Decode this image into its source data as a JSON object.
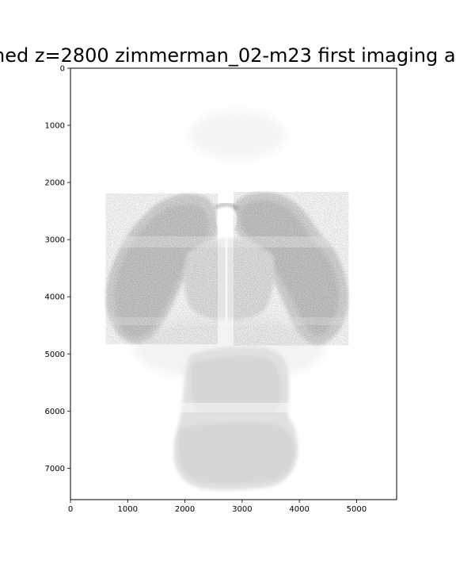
{
  "chart_data": {
    "type": "heatmap",
    "title": "ned z=2800 zimmerman_02-m23 first imaging at",
    "xlabel": "",
    "ylabel": "",
    "xlim": [
      0,
      5700
    ],
    "ylim": [
      7550,
      0
    ],
    "x_ticks": [
      0,
      1000,
      2000,
      3000,
      4000,
      5000
    ],
    "y_ticks": [
      0,
      1000,
      2000,
      3000,
      4000,
      5000,
      6000,
      7000
    ],
    "colormap": "grayscale inverted (white = low, black = high)",
    "grid": false,
    "legend": "none"
  }
}
